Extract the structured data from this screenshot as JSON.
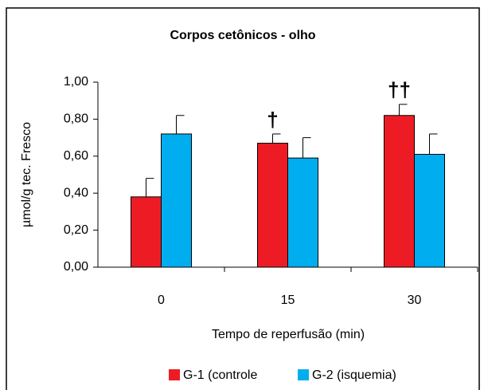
{
  "chart_data": {
    "type": "bar",
    "title": "Corpos cetônicos - olho",
    "xlabel": "Tempo de reperfusão (min)",
    "ylabel": "µmol/g tec. Fresco",
    "categories": [
      "0",
      "15",
      "30"
    ],
    "series": [
      {
        "name": "G-1 (controle",
        "color": "#ed1c24",
        "values": [
          0.38,
          0.67,
          0.82
        ],
        "errors": [
          0.1,
          0.05,
          0.06
        ]
      },
      {
        "name": "G-2 (isquemia)",
        "color": "#00aeef",
        "values": [
          0.72,
          0.59,
          0.61
        ],
        "errors": [
          0.1,
          0.11,
          0.11
        ]
      }
    ],
    "annotations": [
      "†",
      "††"
    ],
    "ylim": [
      0,
      1
    ],
    "yticks": [
      {
        "value": 0,
        "label": "0,00"
      },
      {
        "value": 0.2,
        "label": "0,20"
      },
      {
        "value": 0.4,
        "label": "0,40"
      },
      {
        "value": 0.6,
        "label": "0,60"
      },
      {
        "value": 0.8,
        "label": "0,80"
      },
      {
        "value": 1,
        "label": "1,00"
      }
    ],
    "grid": false
  }
}
